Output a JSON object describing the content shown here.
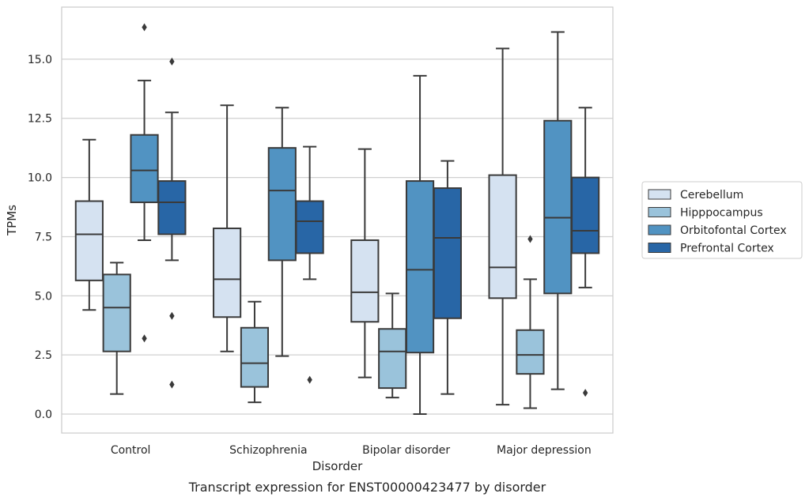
{
  "chart_data": {
    "type": "box",
    "caption": "Transcript expression for ENST00000423477 by disorder",
    "xlabel": "Disorder",
    "ylabel": "TPMs",
    "ylim": [
      -0.8,
      17.2
    ],
    "yticks": [
      "0.0",
      "2.5",
      "5.0",
      "7.5",
      "10.0",
      "12.5",
      "15.0"
    ],
    "grid": true,
    "legend_position": "right",
    "categories": [
      "Control",
      "Schizophrenia",
      "Bipolar disorder",
      "Major depression"
    ],
    "series": [
      {
        "name": "Cerebellum",
        "color": "#d5e2f1",
        "boxes": [
          {
            "whisker_low": 4.4,
            "q1": 5.65,
            "median": 7.6,
            "q3": 9.0,
            "whisker_high": 11.6,
            "outliers": []
          },
          {
            "whisker_low": 2.65,
            "q1": 4.1,
            "median": 5.7,
            "q3": 7.85,
            "whisker_high": 13.05,
            "outliers": []
          },
          {
            "whisker_low": 1.55,
            "q1": 3.9,
            "median": 5.15,
            "q3": 7.35,
            "whisker_high": 11.2,
            "outliers": []
          },
          {
            "whisker_low": 0.4,
            "q1": 4.9,
            "median": 6.2,
            "q3": 10.1,
            "whisker_high": 15.45,
            "outliers": []
          }
        ]
      },
      {
        "name": "Hipppocampus",
        "color": "#9ac3db",
        "boxes": [
          {
            "whisker_low": 0.85,
            "q1": 2.65,
            "median": 4.5,
            "q3": 5.9,
            "whisker_high": 6.4,
            "outliers": []
          },
          {
            "whisker_low": 0.5,
            "q1": 1.15,
            "median": 2.15,
            "q3": 3.65,
            "whisker_high": 4.75,
            "outliers": []
          },
          {
            "whisker_low": 0.7,
            "q1": 1.1,
            "median": 2.65,
            "q3": 3.6,
            "whisker_high": 5.1,
            "outliers": []
          },
          {
            "whisker_low": 0.25,
            "q1": 1.7,
            "median": 2.5,
            "q3": 3.55,
            "whisker_high": 5.7,
            "outliers": [
              7.4
            ]
          }
        ]
      },
      {
        "name": "Orbitofontal Cortex",
        "color": "#5193c2",
        "boxes": [
          {
            "whisker_low": 7.35,
            "q1": 8.95,
            "median": 10.3,
            "q3": 11.8,
            "whisker_high": 14.1,
            "outliers": [
              16.35,
              3.2
            ]
          },
          {
            "whisker_low": 2.45,
            "q1": 6.5,
            "median": 9.45,
            "q3": 11.25,
            "whisker_high": 12.95,
            "outliers": []
          },
          {
            "whisker_low": 0.0,
            "q1": 2.6,
            "median": 6.1,
            "q3": 9.85,
            "whisker_high": 14.3,
            "outliers": []
          },
          {
            "whisker_low": 1.05,
            "q1": 5.1,
            "median": 8.3,
            "q3": 12.4,
            "whisker_high": 16.15,
            "outliers": []
          }
        ]
      },
      {
        "name": "Prefrontal Cortex",
        "color": "#2866a6",
        "boxes": [
          {
            "whisker_low": 6.5,
            "q1": 7.6,
            "median": 8.95,
            "q3": 9.85,
            "whisker_high": 12.75,
            "outliers": [
              14.9,
              4.15,
              1.25
            ]
          },
          {
            "whisker_low": 5.7,
            "q1": 6.8,
            "median": 8.15,
            "q3": 9.0,
            "whisker_high": 11.3,
            "outliers": [
              1.45
            ]
          },
          {
            "whisker_low": 0.85,
            "q1": 4.05,
            "median": 7.45,
            "q3": 9.55,
            "whisker_high": 10.7,
            "outliers": []
          },
          {
            "whisker_low": 5.35,
            "q1": 6.8,
            "median": 7.75,
            "q3": 10.0,
            "whisker_high": 12.95,
            "outliers": [
              0.9
            ]
          }
        ]
      }
    ]
  }
}
